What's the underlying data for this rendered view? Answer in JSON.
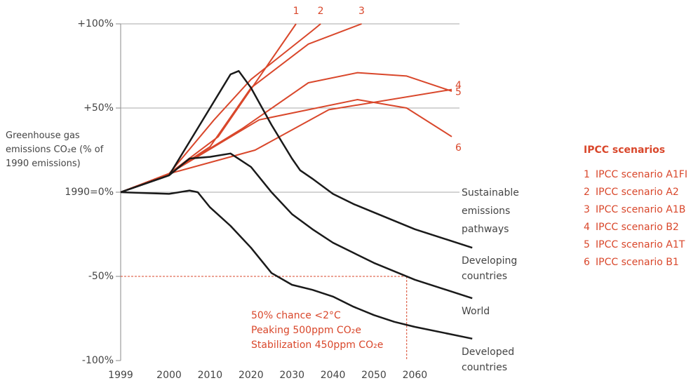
{
  "chart_data": {
    "type": "line",
    "y_label": "Greenhouse gas emissions CO₂e (% of 1990 emissions)",
    "xlim": [
      1999,
      2074
    ],
    "xticks": [
      1999,
      2000,
      2010,
      2020,
      2030,
      2040,
      2050,
      2060
    ],
    "ylim": [
      -100,
      100
    ],
    "yticks": [
      {
        "value": -100,
        "label": "-100%"
      },
      {
        "value": -50,
        "label": "-50%"
      },
      {
        "value": 0,
        "label": "1990=0%"
      },
      {
        "value": 50,
        "label": "+50%"
      },
      {
        "value": 100,
        "label": "+100%"
      }
    ],
    "grid": true,
    "legend_title": "IPCC scenarios",
    "series": [
      {
        "label": "1",
        "name": "IPCC scenario A1FI",
        "color": "#d9472b",
        "x": [
          1999,
          2000,
          2012,
          2031
        ],
        "values": [
          0,
          11,
          33,
          100
        ]
      },
      {
        "label": "2",
        "name": "IPCC scenario A2",
        "color": "#d9472b",
        "x": [
          1999,
          2000,
          2011,
          2020,
          2035,
          2037
        ],
        "values": [
          0,
          11,
          43,
          67,
          96,
          100
        ]
      },
      {
        "label": "3",
        "name": "IPCC scenario A1B",
        "color": "#d9472b",
        "x": [
          1999,
          2000,
          2010,
          2020,
          2034,
          2047
        ],
        "values": [
          0,
          11,
          27,
          62,
          88,
          100
        ]
      },
      {
        "label": "4",
        "name": "IPCC scenario B2",
        "color": "#d9472b",
        "x": [
          1999,
          2000,
          2018,
          2034,
          2046,
          2058,
          2069
        ],
        "values": [
          0,
          11,
          38,
          65,
          71,
          69,
          60
        ]
      },
      {
        "label": "5",
        "name": "IPCC scenario A1T",
        "color": "#d9472b",
        "x": [
          1999,
          2000,
          2021,
          2039,
          2069
        ],
        "values": [
          0,
          11,
          25,
          49,
          61
        ]
      },
      {
        "label": "6",
        "name": "IPCC scenario B1",
        "color": "#d9472b",
        "x": [
          1999,
          2000,
          2022,
          2046,
          2058,
          2069
        ],
        "values": [
          0,
          11,
          43,
          55,
          50,
          33
        ]
      }
    ],
    "pathways_label": "Sustainable emissions pathways",
    "pathways": [
      {
        "name": "Developing countries",
        "color": "#1a1a1a",
        "x": [
          1999,
          2000,
          2005,
          2010,
          2015,
          2017,
          2020,
          2025,
          2030,
          2032,
          2035,
          2040,
          2045,
          2050,
          2055,
          2060,
          2074
        ],
        "values": [
          0,
          10,
          30,
          50,
          70,
          72,
          62,
          40,
          20,
          13,
          8,
          -1,
          -7,
          -12,
          -17,
          -22,
          -33
        ]
      },
      {
        "name": "World",
        "color": "#1a1a1a",
        "x": [
          1999,
          2000,
          2005,
          2010,
          2015,
          2020,
          2025,
          2030,
          2035,
          2040,
          2045,
          2050,
          2055,
          2060,
          2074
        ],
        "values": [
          0,
          10,
          20,
          21,
          23,
          15,
          0,
          -13,
          -22,
          -30,
          -36,
          -42,
          -47,
          -52,
          -63
        ]
      },
      {
        "name": "Developed countries",
        "color": "#1a1a1a",
        "x": [
          1999,
          2000,
          2005,
          2007,
          2010,
          2015,
          2020,
          2025,
          2030,
          2035,
          2040,
          2045,
          2050,
          2055,
          2060,
          2074
        ],
        "values": [
          0,
          -1,
          1,
          0,
          -9,
          -20,
          -33,
          -48,
          -55,
          -58,
          -62,
          -68,
          -73,
          -77,
          -80,
          -87
        ]
      }
    ],
    "reference": {
      "x": 2058,
      "y": -50,
      "color": "#d9472b"
    },
    "annotation": [
      "50% chance <2°C",
      "Peaking 500ppm CO₂e",
      "Stabilization 450ppm CO₂e"
    ]
  }
}
